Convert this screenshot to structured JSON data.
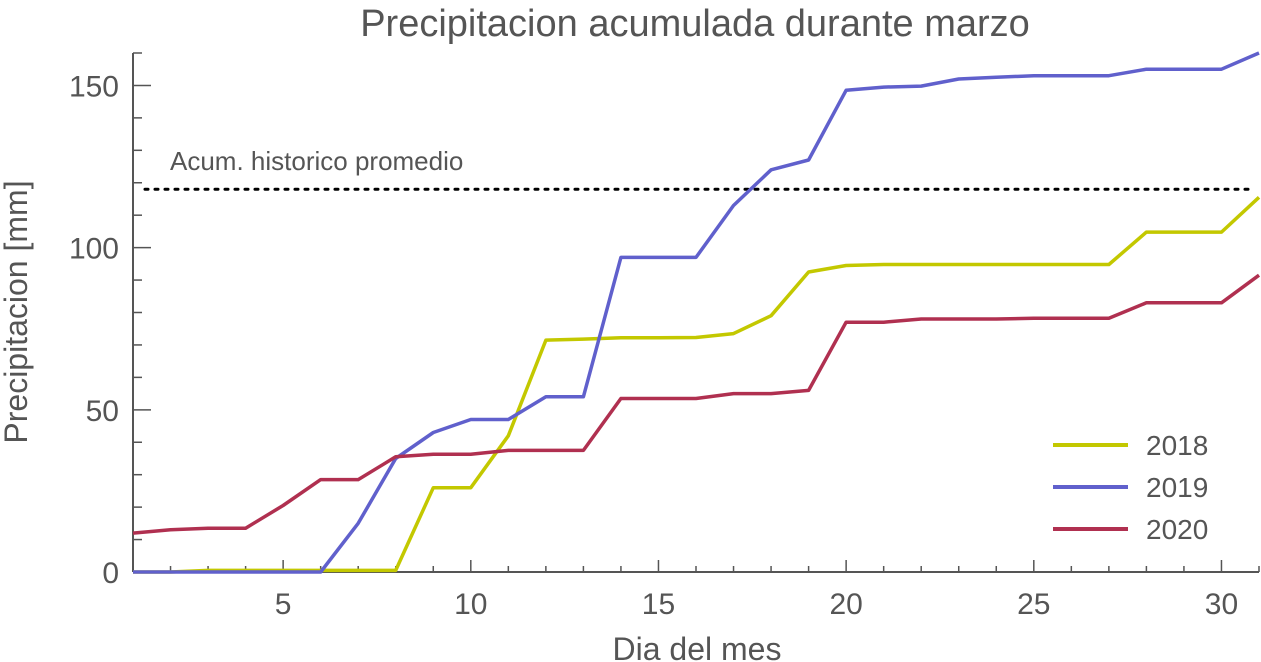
{
  "chart_data": {
    "type": "line",
    "title": "Precipitacion acumulada durante marzo",
    "xlabel": "Dia del mes",
    "ylabel": "Precipitacion [mm]",
    "xlim": [
      1,
      31
    ],
    "ylim": [
      0,
      160
    ],
    "x_ticks": [
      5,
      10,
      15,
      20,
      25,
      30
    ],
    "y_ticks": [
      0,
      50,
      100,
      150
    ],
    "x_tick_labels": [
      "5",
      "10",
      "15",
      "20",
      "25",
      "30"
    ],
    "y_tick_labels": [
      "0",
      "50",
      "100",
      "150"
    ],
    "grid": false,
    "legend_position": "bottom-right",
    "reference_line": {
      "label": "Acum. historico promedio",
      "value": 118,
      "style": "dotted",
      "color": "#000000"
    },
    "x": [
      1,
      2,
      3,
      4,
      5,
      6,
      7,
      8,
      9,
      10,
      11,
      12,
      13,
      14,
      15,
      16,
      17,
      18,
      19,
      20,
      21,
      22,
      23,
      24,
      25,
      26,
      27,
      28,
      29,
      30,
      31
    ],
    "series": [
      {
        "name": "2018",
        "color": "#c3c800",
        "values": [
          0,
          0,
          0.5,
          0.5,
          0.5,
          0.5,
          0.5,
          0.5,
          26,
          26,
          42,
          71.5,
          71.8,
          72.2,
          72.2,
          72.3,
          73.5,
          79,
          92.5,
          94.5,
          94.8,
          94.8,
          94.8,
          94.8,
          94.8,
          94.8,
          94.8,
          104.8,
          104.8,
          104.8,
          115.5
        ]
      },
      {
        "name": "2019",
        "color": "#6060cc",
        "values": [
          0,
          0,
          0,
          0,
          0,
          0,
          15,
          35,
          43,
          47,
          47,
          54,
          54,
          97,
          97,
          97,
          113,
          124,
          127,
          148.5,
          149.5,
          149.8,
          152,
          152.5,
          153,
          153,
          153,
          155,
          155,
          155,
          160
        ]
      },
      {
        "name": "2020",
        "color": "#b03050",
        "values": [
          12,
          13,
          13.5,
          13.5,
          20.5,
          28.5,
          28.5,
          35.5,
          36.3,
          36.3,
          37.5,
          37.5,
          37.5,
          53.5,
          53.5,
          53.5,
          55,
          55,
          56,
          77,
          77,
          78,
          78,
          78,
          78.2,
          78.2,
          78.2,
          83,
          83,
          83,
          91.5
        ]
      }
    ]
  }
}
